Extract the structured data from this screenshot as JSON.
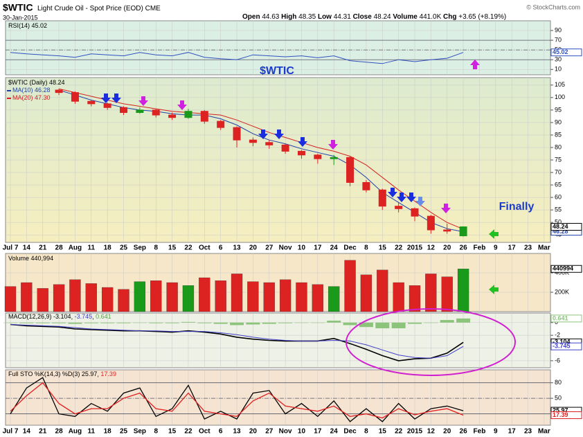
{
  "chart_data": [
    {
      "type": "candlestick",
      "title": "$WTIC",
      "subtitle": "Light Crude Oil - Spot Price (EOD)",
      "exchange": "CME",
      "date": "30-Jan-2015",
      "source": "© StockCharts.com",
      "stats": [
        {
          "name": "Open",
          "value": 44.63
        },
        {
          "name": "High",
          "value": 48.35
        },
        {
          "name": "Low",
          "value": 44.31
        },
        {
          "name": "Close",
          "value": 48.24
        },
        {
          "name": "Volume",
          "value": 441000,
          "label": "441.0K"
        },
        {
          "name": "Chg",
          "value": 3.65,
          "label": "+3.65"
        },
        {
          "name": "",
          "value": 8.19,
          "label": "(+8.19%)"
        }
      ],
      "legend_label": "$WTIC (Daily)",
      "categories": [
        "Jul 7",
        "14",
        "21",
        "28",
        "Aug",
        "11",
        "18",
        "25",
        "Sep",
        "8",
        "15",
        "22",
        "Oct",
        "6",
        "13",
        "20",
        "27",
        "Nov",
        "10",
        "17",
        "24",
        "Dec",
        "8",
        "15",
        "22",
        "2015",
        "12",
        "20",
        "26",
        "Feb",
        "9",
        "17",
        "23",
        "Mar"
      ],
      "open": [
        null,
        null,
        null,
        103,
        102,
        98.5,
        97.5,
        96,
        94,
        95,
        93,
        92,
        94.5,
        90.5,
        88,
        83,
        82,
        81,
        78.5,
        77,
        75.5,
        76,
        66,
        63,
        56.5,
        55.5,
        52.5,
        47,
        44.63,
        null,
        null,
        null,
        null,
        null
      ],
      "high": [
        null,
        null,
        null,
        103.5,
        102.5,
        99,
        98,
        96.5,
        96,
        95.5,
        94,
        95.5,
        95,
        91,
        88.5,
        84,
        83,
        81.5,
        79,
        77.5,
        77,
        76.5,
        67,
        63.5,
        58,
        56,
        53,
        49.5,
        48.35,
        null,
        null,
        null,
        null,
        null
      ],
      "low": [
        null,
        null,
        null,
        101,
        97.5,
        96.5,
        95,
        93,
        93.5,
        92,
        91,
        91.5,
        89.5,
        87,
        80,
        80.5,
        79.5,
        77.5,
        75.5,
        73.5,
        73,
        64.5,
        62,
        55,
        54,
        50.5,
        45.5,
        45.5,
        44.31,
        null,
        null,
        null,
        null,
        null
      ],
      "close": [
        null,
        null,
        null,
        102,
        98.5,
        97.5,
        96,
        94,
        95,
        93,
        92,
        94.5,
        90.5,
        88,
        83,
        82,
        81,
        78.5,
        77,
        75.5,
        76,
        66,
        63,
        56.5,
        55.5,
        52.5,
        47,
        46.5,
        48.24,
        null,
        null,
        null,
        null,
        null
      ],
      "up_color": "#1a9a1a",
      "down_color": "#dd2222",
      "series": [
        {
          "name": "MA(10)",
          "color": "#1f3fa8",
          "legend_value": 46.28,
          "values": [
            null,
            null,
            null,
            103,
            101,
            99,
            97.5,
            96,
            95,
            94.5,
            93.5,
            93,
            93,
            91.5,
            89,
            85.5,
            83,
            81.5,
            79.5,
            78,
            76.5,
            73,
            68,
            62,
            58,
            54,
            50,
            47.5,
            46.28,
            null,
            null,
            null,
            null,
            null
          ]
        },
        {
          "name": "MA(20)",
          "color": "#d42020",
          "legend_value": {
            "value": 47.3,
            "label": "47.30"
          },
          "values": [
            null,
            null,
            null,
            103.5,
            102,
            100.5,
            99,
            97.5,
            96.5,
            95.5,
            94.5,
            94,
            93.5,
            93,
            91,
            88.5,
            86,
            84,
            82,
            80,
            78.5,
            76.5,
            73,
            68,
            63,
            58.5,
            54,
            50,
            47.3,
            null,
            null,
            null,
            null,
            null
          ]
        }
      ],
      "ylim": [
        42,
        108
      ],
      "yticks": [
        45,
        50,
        55,
        60,
        65,
        70,
        75,
        80,
        85,
        90,
        95,
        100,
        105
      ],
      "grid": true,
      "annotation": "Finally"
    },
    {
      "type": "line",
      "title": "RSI(14)",
      "color": "#3050c0",
      "values": [
        45,
        42,
        40,
        38,
        35,
        42,
        40,
        38,
        45,
        40,
        38,
        45,
        35,
        32,
        30,
        40,
        38,
        36,
        38,
        34,
        38,
        28,
        25,
        22,
        30,
        26,
        30,
        33,
        45.02,
        null,
        null,
        null,
        null,
        null
      ],
      "ylim": [
        -1,
        110
      ],
      "yticks": [
        10,
        30,
        50,
        70,
        90
      ],
      "levels": [
        30,
        50,
        70
      ],
      "grid": true,
      "annotation": "$WTIC"
    },
    {
      "type": "bar",
      "title": "Volume",
      "legend_value": {
        "value": 440994,
        "label": "440,994"
      },
      "values": [
        260000,
        300000,
        240000,
        280000,
        330000,
        290000,
        250000,
        230000,
        310000,
        320000,
        300000,
        270000,
        350000,
        320000,
        390000,
        310000,
        300000,
        330000,
        300000,
        280000,
        260000,
        530000,
        380000,
        430000,
        300000,
        270000,
        390000,
        360000,
        440994,
        null,
        null,
        null,
        null,
        null
      ],
      "ylim": [
        0,
        600000
      ],
      "yticks": [
        {
          "value": 200000,
          "label": "200K"
        },
        {
          "value": 400000,
          "label": "400K"
        }
      ],
      "grid": true
    },
    {
      "type": "macd",
      "title": "MACD(12,26,9)",
      "series": [
        {
          "kind": "line",
          "color": "#000000",
          "values": [
            -0.3,
            -0.5,
            -0.6,
            -0.7,
            -1.0,
            -1.1,
            -1.2,
            -1.3,
            -1.3,
            -1.4,
            -1.5,
            -1.3,
            -1.5,
            -1.8,
            -2.3,
            -2.6,
            -2.8,
            -2.9,
            -2.9,
            -2.9,
            -2.5,
            -3.3,
            -4.2,
            -5.2,
            -6.0,
            -5.7,
            -5.6,
            -4.8,
            -3.104,
            null,
            null,
            null,
            null,
            null
          ]
        },
        {
          "kind": "line",
          "color": "#4040c8",
          "values": [
            -0.3,
            -0.4,
            -0.5,
            -0.6,
            -0.8,
            -1.0,
            -1.1,
            -1.2,
            -1.3,
            -1.3,
            -1.4,
            -1.4,
            -1.4,
            -1.6,
            -1.9,
            -2.3,
            -2.6,
            -2.8,
            -2.9,
            -2.9,
            -2.8,
            -2.9,
            -3.5,
            -4.3,
            -5.1,
            -5.5,
            -5.6,
            -5.2,
            -3.745,
            null,
            null,
            null,
            null,
            null
          ]
        },
        {
          "kind": "histogram",
          "color": "#8cc47c",
          "values": [
            0,
            -0.1,
            -0.1,
            -0.1,
            -0.2,
            -0.1,
            -0.1,
            -0.1,
            0,
            -0.1,
            -0.1,
            0.1,
            -0.1,
            -0.2,
            -0.4,
            -0.3,
            -0.2,
            -0.1,
            0,
            0,
            0.3,
            -0.4,
            -0.7,
            -0.9,
            -0.9,
            -0.2,
            0,
            0.4,
            0.641,
            null,
            null,
            null,
            null,
            null
          ]
        }
      ],
      "ylim": [
        -7.1,
        1.5
      ],
      "yticks": [
        0,
        -2,
        -4,
        -6
      ],
      "grid": true
    },
    {
      "type": "line",
      "title": "Full STO %K(14,3) %D(3)",
      "series": [
        {
          "color": "#000000",
          "values": [
            20,
            70,
            90,
            20,
            15,
            40,
            25,
            60,
            70,
            15,
            30,
            75,
            10,
            25,
            10,
            60,
            65,
            20,
            40,
            15,
            45,
            5,
            30,
            5,
            40,
            10,
            30,
            35,
            25.97,
            null,
            null,
            null,
            null,
            null
          ]
        },
        {
          "color": "#e02020",
          "values": [
            25,
            55,
            80,
            40,
            20,
            30,
            30,
            50,
            60,
            30,
            25,
            60,
            25,
            20,
            15,
            45,
            60,
            35,
            30,
            25,
            35,
            15,
            20,
            12,
            30,
            18,
            25,
            30,
            17.39,
            null,
            null,
            null,
            null,
            null
          ]
        }
      ],
      "ylim": [
        -2,
        105
      ],
      "yticks": [
        50,
        80
      ],
      "levels": [
        20,
        50,
        80
      ],
      "grid": true
    }
  ]
}
